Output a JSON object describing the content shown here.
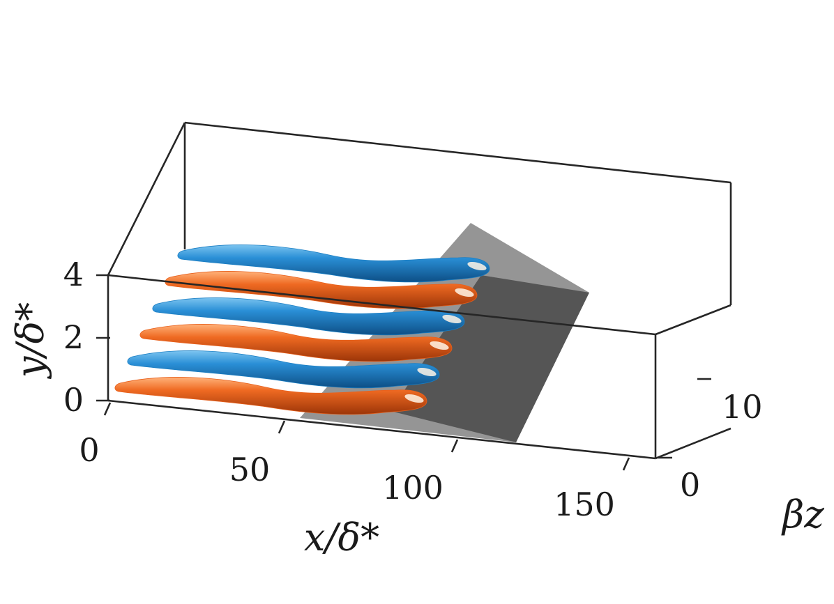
{
  "chart_data": {
    "type": "3d-isosurface",
    "axes": {
      "x": {
        "label": "x/δ*",
        "ticks": [
          "0",
          "50",
          "100",
          "150"
        ],
        "range": [
          0,
          160
        ]
      },
      "y": {
        "label": "y/δ*",
        "ticks": [
          "0",
          "2",
          "4"
        ],
        "range": [
          0,
          4
        ]
      },
      "z": {
        "label": "βz",
        "ticks": [
          "0",
          "10"
        ]
      }
    },
    "box": true,
    "grid": false,
    "series": [
      {
        "role": "positive",
        "color": "#e8601c",
        "count": 3
      },
      {
        "role": "negative",
        "color": "#1b7fc4",
        "count": 3
      }
    ],
    "plane": {
      "color": "#8c8c8c",
      "x_range": [
        55,
        120
      ]
    }
  }
}
